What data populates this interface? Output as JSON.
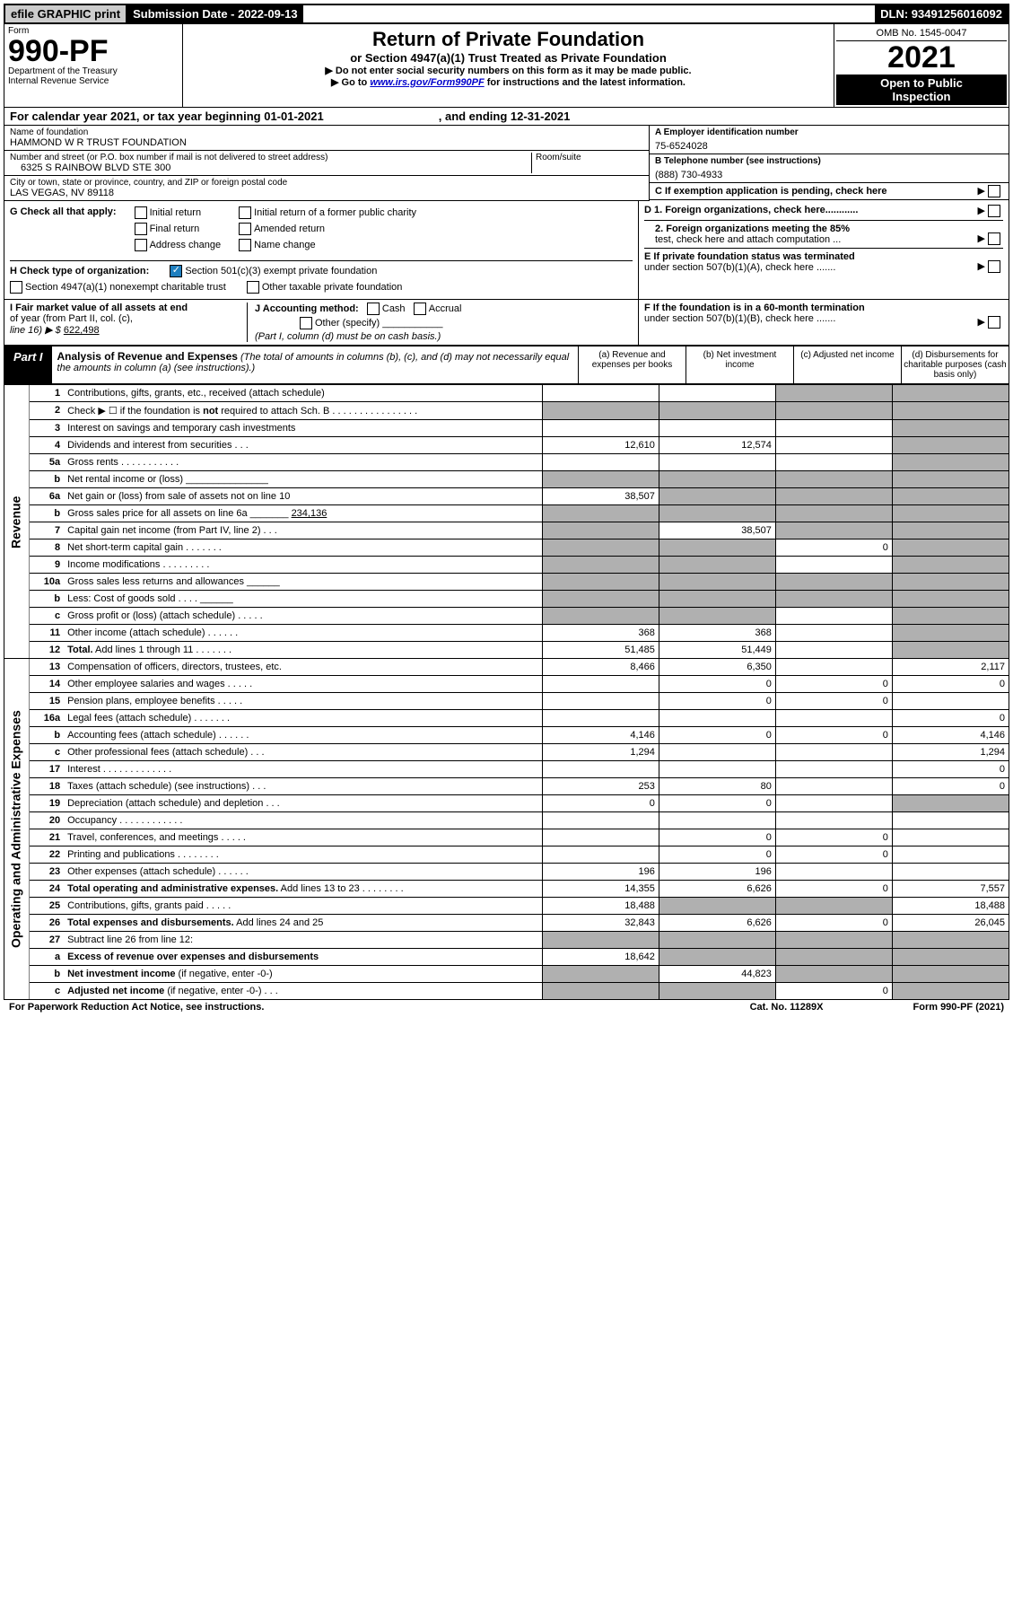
{
  "top_bar": {
    "efile": "efile GRAPHIC print",
    "submission_label": "Submission Date - 2022-09-13",
    "dln": "DLN: 93491256016092"
  },
  "header": {
    "form_word": "Form",
    "form_num": "990-PF",
    "dept1": "Department of the Treasury",
    "dept2": "Internal Revenue Service",
    "title": "Return of Private Foundation",
    "subtitle": "or Section 4947(a)(1) Trust Treated as Private Foundation",
    "note1": "▶ Do not enter social security numbers on this form as it may be made public.",
    "note2_pre": "▶ Go to ",
    "note2_link": "www.irs.gov/Form990PF",
    "note2_post": " for instructions and the latest information.",
    "omb": "OMB No. 1545-0047",
    "year": "2021",
    "inspection1": "Open to Public",
    "inspection2": "Inspection"
  },
  "cal_year": {
    "prefix": "For calendar year 2021, or tax year beginning 01-01-2021",
    "ending": ", and ending 12-31-2021"
  },
  "info": {
    "name_label": "Name of foundation",
    "name_val": "HAMMOND W R TRUST FOUNDATION",
    "addr_label": "Number and street (or P.O. box number if mail is not delivered to street address)",
    "addr_val": "6325 S RAINBOW BLVD STE 300",
    "room_label": "Room/suite",
    "city_label": "City or town, state or province, country, and ZIP or foreign postal code",
    "city_val": "LAS VEGAS, NV  89118",
    "a_label": "A Employer identification number",
    "a_val": "75-6524028",
    "b_label": "B Telephone number (see instructions)",
    "b_val": "(888) 730-4933",
    "c_label": "C If exemption application is pending, check here",
    "d1": "D 1. Foreign organizations, check here............",
    "d2a": "2. Foreign organizations meeting the 85%",
    "d2b": "test, check here and attach computation ...",
    "e1": "E  If private foundation status was terminated",
    "e2": "under section 507(b)(1)(A), check here .......",
    "f1": "F  If the foundation is in a 60-month termination",
    "f2": "under section 507(b)(1)(B), check here .......",
    "g_label": "G Check all that apply:",
    "g_items": [
      "Initial return",
      "Final return",
      "Address change",
      "Initial return of a former public charity",
      "Amended return",
      "Name change"
    ],
    "h_label": "H Check type of organization:",
    "h1": "Section 501(c)(3) exempt private foundation",
    "h2": "Section 4947(a)(1) nonexempt charitable trust",
    "h3": "Other taxable private foundation",
    "i1": "I Fair market value of all assets at end",
    "i2": "of year (from Part II, col. (c),",
    "i3_pre": "line 16) ▶ $ ",
    "i3_val": "622,498",
    "j_label": "J Accounting method:",
    "j_cash": "Cash",
    "j_accrual": "Accrual",
    "j_other": "Other (specify)",
    "j_note": "(Part I, column (d) must be on cash basis.)"
  },
  "part1": {
    "label": "Part I",
    "title": "Analysis of Revenue and Expenses",
    "desc": " (The total of amounts in columns (b), (c), and (d) may not necessarily equal the amounts in column (a) (see instructions).)",
    "col_a": "(a)   Revenue and expenses per books",
    "col_b": "(b)   Net investment income",
    "col_c": "(c)   Adjusted net income",
    "col_d": "(d)   Disbursements for charitable purposes (cash basis only)"
  },
  "sections": {
    "revenue": "Revenue",
    "expenses": "Operating and Administrative Expenses"
  },
  "rows": [
    {
      "n": "1",
      "d": "Contributions, gifts, grants, etc., received (attach schedule)",
      "a": "",
      "b": "",
      "c": "gray",
      "dd": "gray"
    },
    {
      "n": "2",
      "d": "Check ▶ ☐ if the foundation is <b>not</b> required to attach Sch. B  .  .  .  .  .  .  .  .  .  .  .  .  .  .  .  .",
      "a": "gray",
      "b": "gray",
      "c": "gray",
      "dd": "gray"
    },
    {
      "n": "3",
      "d": "Interest on savings and temporary cash investments",
      "a": "",
      "b": "",
      "c": "",
      "dd": "gray"
    },
    {
      "n": "4",
      "d": "Dividends and interest from securities  .  .  .",
      "a": "12,610",
      "b": "12,574",
      "c": "",
      "dd": "gray"
    },
    {
      "n": "5a",
      "d": "Gross rents  .  .  .  .  .  .  .  .  .  .  .",
      "a": "",
      "b": "",
      "c": "",
      "dd": "gray"
    },
    {
      "n": "b",
      "d": "Net rental income or (loss)  _______________",
      "a": "gray",
      "b": "gray",
      "c": "gray",
      "dd": "gray"
    },
    {
      "n": "6a",
      "d": "Net gain or (loss) from sale of assets not on line 10",
      "a": "38,507",
      "b": "gray",
      "c": "gray",
      "dd": "gray"
    },
    {
      "n": "b",
      "d": "Gross sales price for all assets on line 6a _______ <u>234,136</u>",
      "a": "gray",
      "b": "gray",
      "c": "gray",
      "dd": "gray"
    },
    {
      "n": "7",
      "d": "Capital gain net income (from Part IV, line 2)  .  .  .",
      "a": "gray",
      "b": "38,507",
      "c": "gray",
      "dd": "gray"
    },
    {
      "n": "8",
      "d": "Net short-term capital gain  .  .  .  .  .  .  .",
      "a": "gray",
      "b": "gray",
      "c": "0",
      "dd": "gray"
    },
    {
      "n": "9",
      "d": "Income modifications  .  .  .  .  .  .  .  .  .",
      "a": "gray",
      "b": "gray",
      "c": "",
      "dd": "gray"
    },
    {
      "n": "10a",
      "d": "Gross sales less returns and allowances   ______",
      "a": "gray",
      "b": "gray",
      "c": "gray",
      "dd": "gray"
    },
    {
      "n": "b",
      "d": "Less: Cost of goods sold   .  .  .  .  ______",
      "a": "gray",
      "b": "gray",
      "c": "gray",
      "dd": "gray"
    },
    {
      "n": "c",
      "d": "Gross profit or (loss) (attach schedule)  .  .  .  .  .",
      "a": "gray",
      "b": "gray",
      "c": "",
      "dd": "gray"
    },
    {
      "n": "11",
      "d": "Other income (attach schedule)  .  .  .  .  .  .",
      "a": "368",
      "b": "368",
      "c": "",
      "dd": "gray"
    },
    {
      "n": "12",
      "d": "<b>Total.</b> Add lines 1 through 11  .  .  .  .  .  .  .",
      "a": "51,485",
      "b": "51,449",
      "c": "",
      "dd": "gray"
    }
  ],
  "exp_rows": [
    {
      "n": "13",
      "d": "Compensation of officers, directors, trustees, etc.",
      "a": "8,466",
      "b": "6,350",
      "c": "",
      "dd": "2,117"
    },
    {
      "n": "14",
      "d": "Other employee salaries and wages  .  .  .  .  .",
      "a": "",
      "b": "0",
      "c": "0",
      "dd": "0"
    },
    {
      "n": "15",
      "d": "Pension plans, employee benefits  .  .  .  .  .",
      "a": "",
      "b": "0",
      "c": "0",
      "dd": ""
    },
    {
      "n": "16a",
      "d": "Legal fees (attach schedule)  .  .  .  .  .  .  .",
      "a": "",
      "b": "",
      "c": "",
      "dd": "0"
    },
    {
      "n": "b",
      "d": "Accounting fees (attach schedule)  .  .  .  .  .  .",
      "a": "4,146",
      "b": "0",
      "c": "0",
      "dd": "4,146"
    },
    {
      "n": "c",
      "d": "Other professional fees (attach schedule)  .  .  .",
      "a": "1,294",
      "b": "",
      "c": "",
      "dd": "1,294"
    },
    {
      "n": "17",
      "d": "Interest  .  .  .  .  .  .  .  .  .  .  .  .  .",
      "a": "",
      "b": "",
      "c": "",
      "dd": "0"
    },
    {
      "n": "18",
      "d": "Taxes (attach schedule) (see instructions)  .  .  .",
      "a": "253",
      "b": "80",
      "c": "",
      "dd": "0"
    },
    {
      "n": "19",
      "d": "Depreciation (attach schedule) and depletion   .  .  .",
      "a": "0",
      "b": "0",
      "c": "",
      "dd": "gray"
    },
    {
      "n": "20",
      "d": "Occupancy  .  .  .  .  .  .  .  .  .  .  .  .",
      "a": "",
      "b": "",
      "c": "",
      "dd": ""
    },
    {
      "n": "21",
      "d": "Travel, conferences, and meetings  .  .  .  .  .",
      "a": "",
      "b": "0",
      "c": "0",
      "dd": ""
    },
    {
      "n": "22",
      "d": "Printing and publications  .  .  .  .  .  .  .  .",
      "a": "",
      "b": "0",
      "c": "0",
      "dd": ""
    },
    {
      "n": "23",
      "d": "Other expenses (attach schedule)  .  .  .  .  .  .",
      "a": "196",
      "b": "196",
      "c": "",
      "dd": ""
    },
    {
      "n": "24",
      "d": "<b>Total operating and administrative expenses.</b> Add lines 13 to 23  .  .  .  .  .  .  .  .",
      "a": "14,355",
      "b": "6,626",
      "c": "0",
      "dd": "7,557"
    },
    {
      "n": "25",
      "d": "Contributions, gifts, grants paid  .  .  .  .  .",
      "a": "18,488",
      "b": "gray",
      "c": "gray",
      "dd": "18,488"
    },
    {
      "n": "26",
      "d": "<b>Total expenses and disbursements.</b> Add lines 24 and 25",
      "a": "32,843",
      "b": "6,626",
      "c": "0",
      "dd": "26,045"
    },
    {
      "n": "27",
      "d": "Subtract line 26 from line 12:",
      "a": "gray",
      "b": "gray",
      "c": "gray",
      "dd": "gray"
    },
    {
      "n": "a",
      "d": "<b>Excess of revenue over expenses and disbursements</b>",
      "a": "18,642",
      "b": "gray",
      "c": "gray",
      "dd": "gray"
    },
    {
      "n": "b",
      "d": "<b>Net investment income</b> (if negative, enter -0-)",
      "a": "gray",
      "b": "44,823",
      "c": "gray",
      "dd": "gray"
    },
    {
      "n": "c",
      "d": "<b>Adjusted net income</b> (if negative, enter -0-)  .  .  .",
      "a": "gray",
      "b": "gray",
      "c": "0",
      "dd": "gray"
    }
  ],
  "footer": {
    "left": "For Paperwork Reduction Act Notice, see instructions.",
    "mid": "Cat. No. 11289X",
    "right": "Form 990-PF (2021)"
  }
}
